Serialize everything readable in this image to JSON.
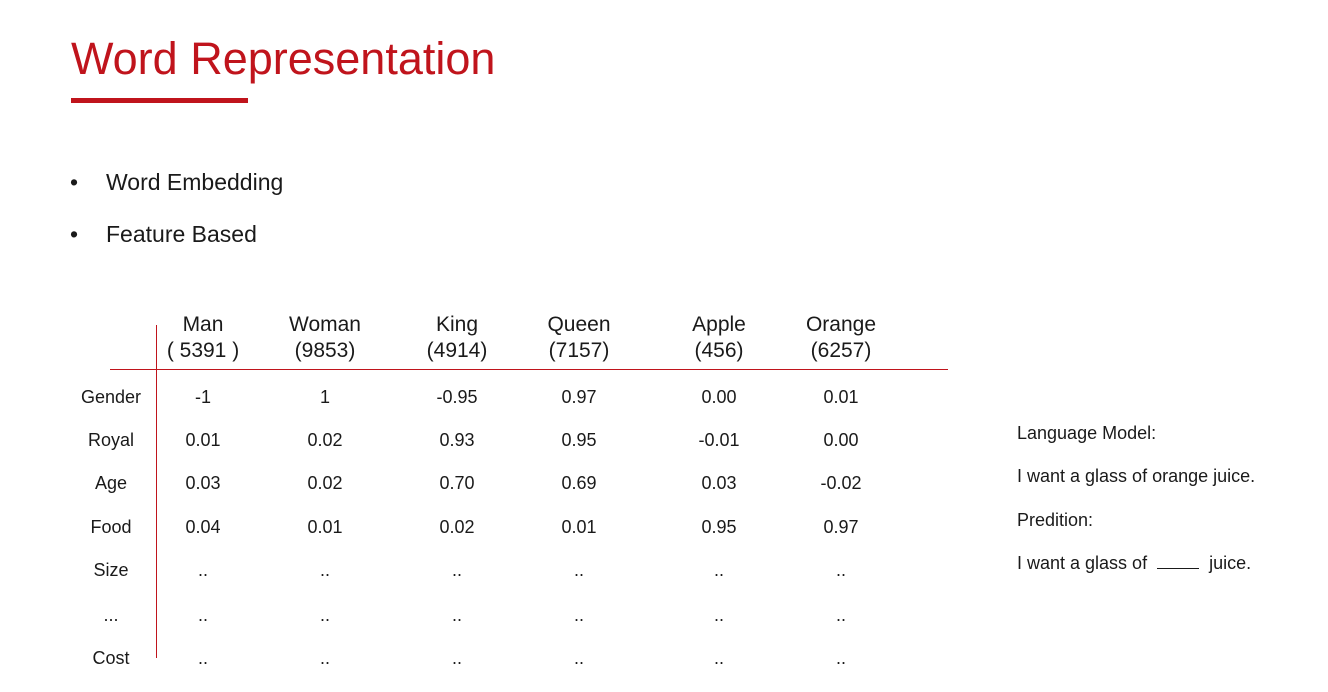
{
  "title": "Word Representation",
  "bullets": [
    {
      "symbol": "•",
      "text": "Word Embedding"
    },
    {
      "symbol": "•",
      "text": "Feature Based"
    }
  ],
  "colors": {
    "accent": "#c0141c",
    "text": "#1a1a1a",
    "background": "#ffffff"
  },
  "table": {
    "columns": [
      {
        "word": "Man",
        "index": "( 5391 )"
      },
      {
        "word": "Woman",
        "index": "(9853)"
      },
      {
        "word": "King",
        "index": "(4914)"
      },
      {
        "word": "Queen",
        "index": "(7157)"
      },
      {
        "word": "Apple",
        "index": "(456)"
      },
      {
        "word": "Orange",
        "index": "(6257)"
      }
    ],
    "rows": [
      {
        "label": "Gender",
        "values": [
          "-1",
          "1",
          "-0.95",
          "0.97",
          "0.00",
          "0.01"
        ]
      },
      {
        "label": "Royal",
        "values": [
          "0.01",
          "0.02",
          "0.93",
          "0.95",
          "-0.01",
          "0.00"
        ]
      },
      {
        "label": "Age",
        "values": [
          "0.03",
          "0.02",
          "0.70",
          "0.69",
          "0.03",
          "-0.02"
        ]
      },
      {
        "label": "Food",
        "values": [
          "0.04",
          "0.01",
          "0.02",
          "0.01",
          "0.95",
          "0.97"
        ]
      },
      {
        "label": "Size",
        "values": [
          "..",
          "..",
          "..",
          "..",
          "..",
          ".."
        ]
      },
      {
        "label": "...",
        "values": [
          "..",
          "..",
          "..",
          "..",
          "..",
          ".."
        ]
      },
      {
        "label": "Cost",
        "values": [
          "..",
          "..",
          "..",
          "..",
          "..",
          ".."
        ]
      }
    ]
  },
  "side": {
    "lm_heading": "Language Model:",
    "lm_sentence": "I want a glass of orange juice.",
    "pred_heading": "Predition:",
    "pred_before": "I want a glass of",
    "pred_after": "juice."
  }
}
